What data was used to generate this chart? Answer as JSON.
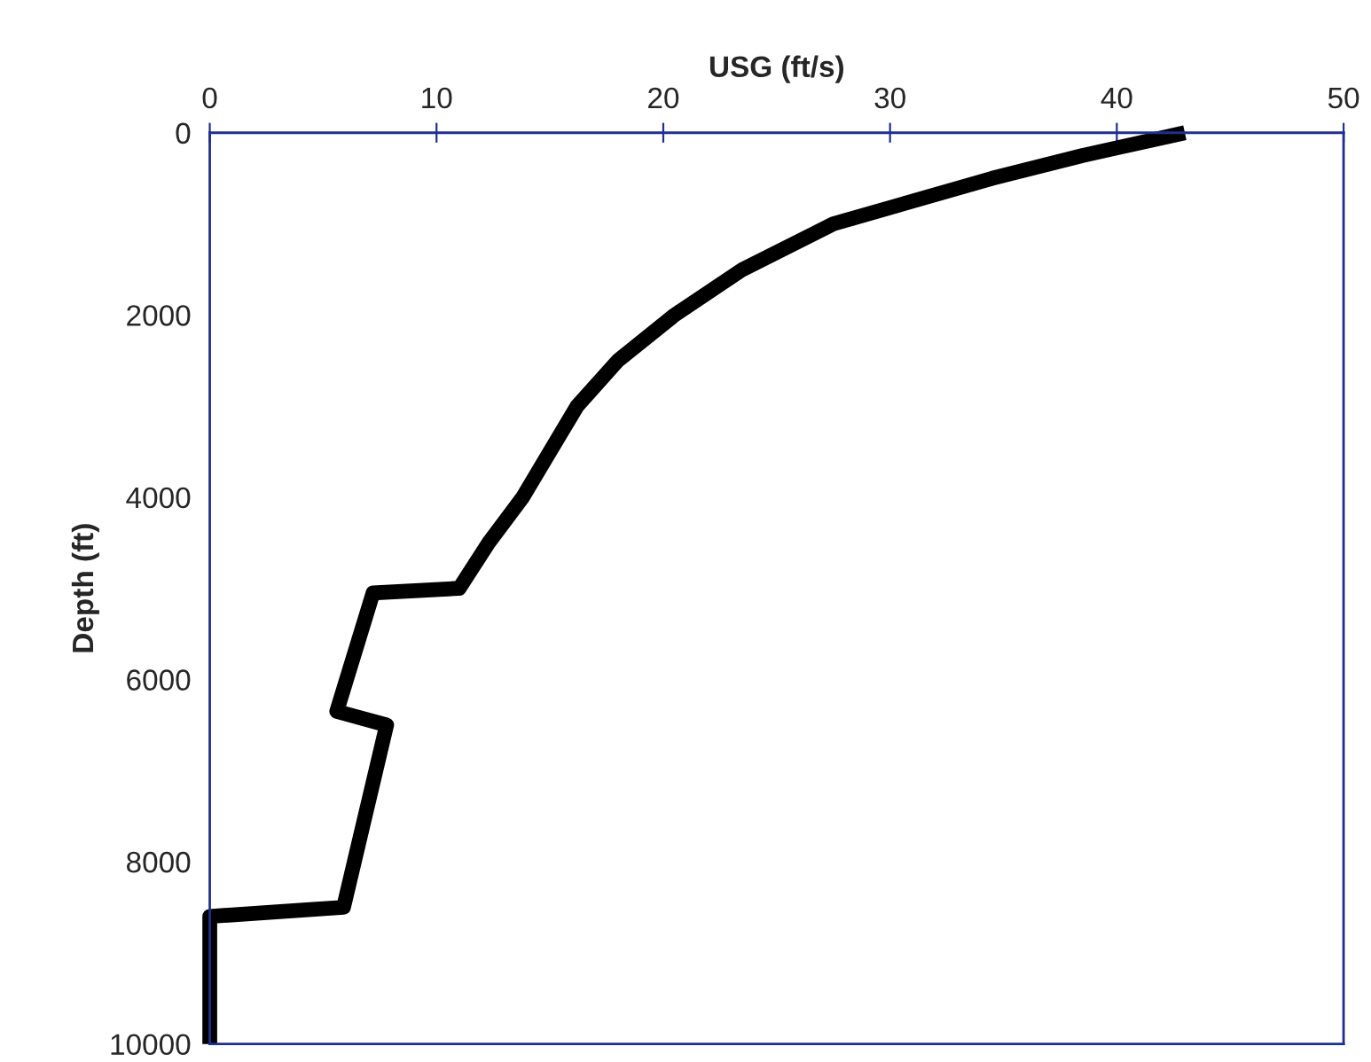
{
  "chart_data": {
    "type": "line",
    "xlabel": "USG (ft/s)",
    "ylabel": "Depth (ft)",
    "xlim": [
      0,
      50
    ],
    "xticks": [
      0,
      10,
      20,
      30,
      40,
      50
    ],
    "ylim": [
      10000,
      0
    ],
    "yticks": [
      0,
      2000,
      4000,
      6000,
      8000,
      10000
    ],
    "grid": false,
    "legend": false,
    "marker": "none",
    "line_style": "solid",
    "series": [
      {
        "color": "#000000",
        "x": [
          43,
          38.5,
          34.5,
          27.5,
          23.5,
          20.5,
          18,
          16.2,
          15,
          13.8,
          12.3,
          11,
          7.2,
          5.6,
          7.8,
          5.9,
          0,
          0
        ],
        "values": [
          0,
          250,
          500,
          1000,
          1500,
          2000,
          2500,
          3000,
          3500,
          4000,
          4500,
          5000,
          5050,
          6350,
          6500,
          8500,
          8600,
          10000
        ]
      }
    ]
  }
}
